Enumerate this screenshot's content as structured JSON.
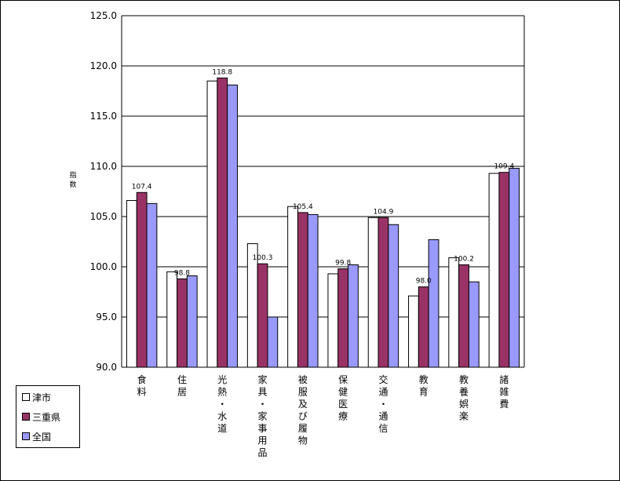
{
  "chart_data": {
    "type": "bar",
    "ylabel": "指数",
    "ylim": [
      90.0,
      125.0
    ],
    "y_ticks": [
      "90.0",
      "95.0",
      "100.0",
      "105.0",
      "110.0",
      "115.0",
      "120.0",
      "125.0"
    ],
    "grid": "horizontal",
    "legend_position": "bottom-left",
    "categories": [
      "食料",
      "住居",
      "光熱・水道",
      "家具・家事用品",
      "被服及び履物",
      "保健医療",
      "交通・通信",
      "教育",
      "教養娯楽",
      "諸雑費"
    ],
    "series": [
      {
        "name": "津市",
        "color": "#ffffff",
        "values": [
          106.6,
          99.5,
          118.5,
          102.3,
          106.0,
          99.3,
          104.9,
          97.1,
          100.9,
          109.3
        ]
      },
      {
        "name": "三重県",
        "color": "#993366",
        "values": [
          107.4,
          98.8,
          118.8,
          100.3,
          105.4,
          99.8,
          104.9,
          98.0,
          100.2,
          109.4
        ]
      },
      {
        "name": "全国",
        "color": "#9999ff",
        "values": [
          106.3,
          99.1,
          118.1,
          95.0,
          105.2,
          100.2,
          104.2,
          102.7,
          98.5,
          109.8
        ]
      }
    ],
    "data_labels": [
      {
        "series": 1,
        "index": 0,
        "text": "107.4"
      },
      {
        "series": 1,
        "index": 1,
        "text": "98.8"
      },
      {
        "series": 1,
        "index": 2,
        "text": "118.8"
      },
      {
        "series": 1,
        "index": 3,
        "text": "100.3"
      },
      {
        "series": 1,
        "index": 4,
        "text": "105.4"
      },
      {
        "series": 1,
        "index": 5,
        "text": "99.8"
      },
      {
        "series": 1,
        "index": 6,
        "text": "104.9"
      },
      {
        "series": 1,
        "index": 7,
        "text": "98.0"
      },
      {
        "series": 1,
        "index": 8,
        "text": "100.2"
      },
      {
        "series": 1,
        "index": 9,
        "text": "109.4"
      }
    ]
  }
}
